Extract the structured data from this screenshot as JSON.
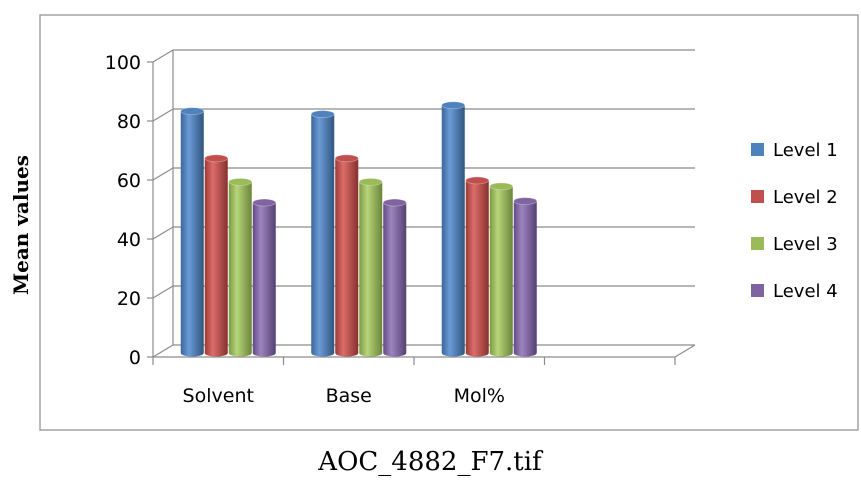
{
  "caption": "AOC_4882_F7.tif",
  "chart_data": {
    "type": "bar",
    "style": "3d-cylinder",
    "categories": [
      "Solvent",
      "Base",
      "Mol%"
    ],
    "series": [
      {
        "name": "Level 1",
        "values": [
          82,
          81,
          84
        ],
        "color": "#4F81BD"
      },
      {
        "name": "Level 2",
        "values": [
          66,
          66,
          58.5
        ],
        "color": "#C0504D"
      },
      {
        "name": "Level 3",
        "values": [
          58,
          58,
          56.5
        ],
        "color": "#9BBB59"
      },
      {
        "name": "Level 4",
        "values": [
          51,
          51,
          51.5
        ],
        "color": "#8064A2"
      }
    ],
    "yticks": [
      "0",
      "20",
      "40",
      "60",
      "80",
      "100"
    ],
    "ylabel": "Mean values",
    "xlabel": "",
    "ylim": [
      0,
      100
    ],
    "grid": true,
    "legend": "right"
  }
}
